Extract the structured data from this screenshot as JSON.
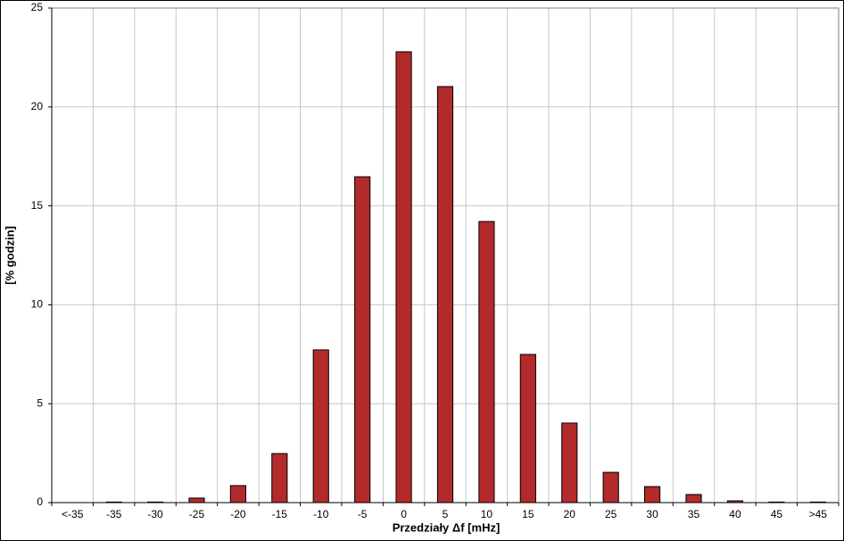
{
  "chart_data": {
    "type": "bar",
    "x_label": "Przedziały Δf [mHz]",
    "y_label": "[%  godzin]",
    "categories": [
      "<-35",
      "-35",
      "-30",
      "-25",
      "-20",
      "-15",
      "-10",
      "-5",
      "0",
      "5",
      "10",
      "15",
      "20",
      "25",
      "30",
      "35",
      "40",
      "45",
      ">45"
    ],
    "values": [
      0,
      0.03,
      0.03,
      0.23,
      0.86,
      2.48,
      7.72,
      16.47,
      22.79,
      21.03,
      14.21,
      7.49,
      4.02,
      1.53,
      0.81,
      0.41,
      0.09,
      0.03,
      0.03
    ],
    "color": "#b22a2a",
    "ylim": [
      0,
      25
    ],
    "yticks": [
      0,
      5,
      10,
      15,
      20,
      25
    ],
    "grid": true
  }
}
